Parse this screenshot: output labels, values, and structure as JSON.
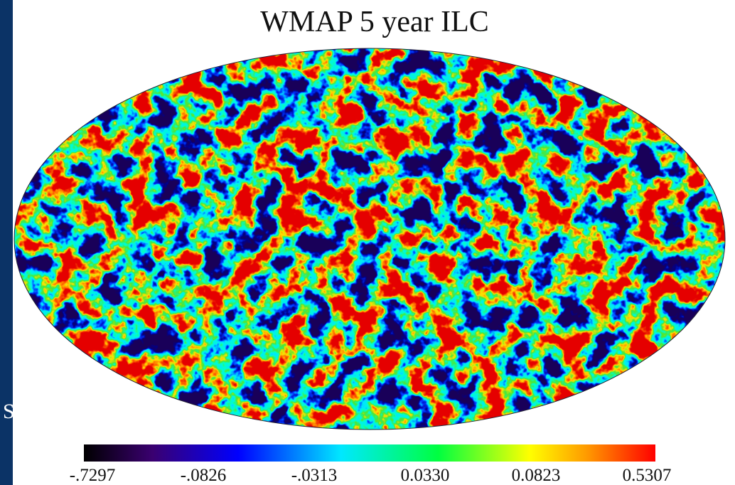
{
  "title": "WMAP 5 year ILC",
  "edge_text": "S",
  "colorbar": {
    "labels": [
      "-.7297",
      "-.0826",
      "-.0313",
      "0.0330",
      "0.0823",
      "0.5307"
    ]
  }
}
